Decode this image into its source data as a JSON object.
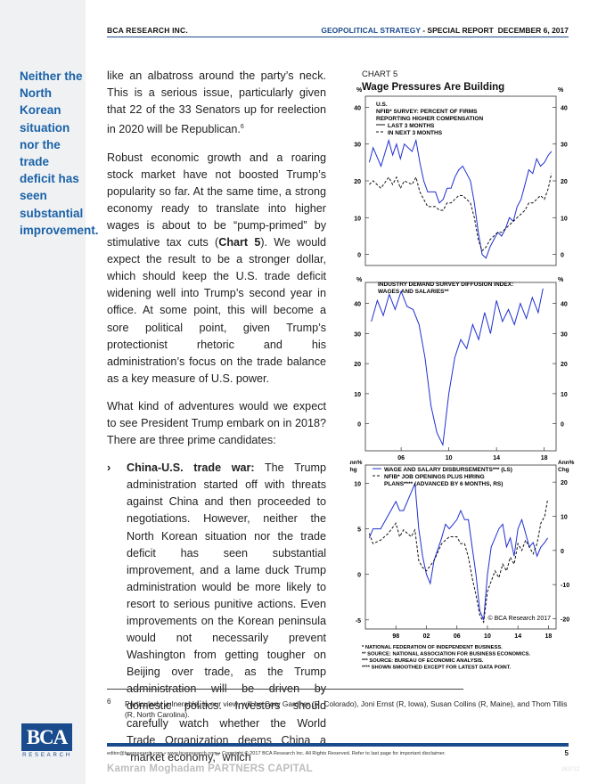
{
  "header": {
    "company": "BCA RESEARCH INC.",
    "report_type": "GEOPOLITICAL STRATEGY",
    "report_subtype": " - SPECIAL REPORT",
    "date": "DECEMBER 6, 2017"
  },
  "pull_quote": "Neither the North Korean situation nor the trade deficit has seen substantial improvement.",
  "body": {
    "p1": "like an albatross around the party’s neck. This is a serious issue, particularly given that 22 of the 33 Senators up for reelection in 2020 will be Republican.",
    "p1_ref": "6",
    "p2a": "Robust economic growth and a roaring stock market have not boosted Trump’s popularity so far. At the same time, a strong economy ready to translate into higher wages is about to be “pump-primed” by stimulative tax cuts (",
    "p2_chart": "Chart 5",
    "p2b": "). We would expect the result to be a stronger dollar, which should keep the U.S. trade deficit widening well into Trump’s second year in office. At some point, this will become a sore political point, given Trump’s protectionist rhetoric and his administration’s focus on the trade balance as a key measure of U.S. power.",
    "p3": "What kind of adventures would we expect to see President Trump embark on in 2018? There are three prime candidates:",
    "bullet_marker": "›",
    "bullet_title": "China-U.S. trade war:",
    "bullet_text": " The Trump administration started off with threats against China and then proceeded to negotiations. However, neither the North Korean situation nor the trade deficit has seen substantial improvement, and a lame duck Trump administration would be more likely to resort to serious punitive actions. Even improvements on the Korean peninsula would not necessarily prevent Washington from getting tougher on Beijing over trade, as the Trump administration will be driven by domestic politics. Investors should carefully watch whether the World Trade Organization deems China a “market economy,” which"
  },
  "chart_data": [
    {
      "type": "line",
      "chart_label": "CHART 5",
      "title": "Wage Pressures Are Building",
      "panel_title": "U.S. NFIB* SURVEY: PERCENT OF FIRMS REPORTING HIGHER COMPENSATION",
      "yunit": "%",
      "ylim": [
        -3,
        43
      ],
      "yticks": [
        0,
        10,
        20,
        30,
        40
      ],
      "xlim": [
        1994,
        2018.5
      ],
      "series": [
        {
          "name": "LAST 3 MONTHS",
          "style": "solid",
          "color": "#1f2fd1",
          "points": [
            [
              1994.5,
              25
            ],
            [
              1995,
              29
            ],
            [
              1996,
              24
            ],
            [
              1997,
              31
            ],
            [
              1997.5,
              27
            ],
            [
              1998,
              30
            ],
            [
              1998.5,
              26
            ],
            [
              1999,
              30
            ],
            [
              2000,
              28
            ],
            [
              2000.5,
              31
            ],
            [
              2001,
              25
            ],
            [
              2001.5,
              20
            ],
            [
              2002,
              17
            ],
            [
              2003,
              17
            ],
            [
              2003.5,
              14
            ],
            [
              2004,
              15
            ],
            [
              2004.5,
              18
            ],
            [
              2005,
              18
            ],
            [
              2005.5,
              21
            ],
            [
              2006,
              23
            ],
            [
              2006.5,
              24
            ],
            [
              2007,
              22
            ],
            [
              2007.5,
              20
            ],
            [
              2008,
              14
            ],
            [
              2008.5,
              6
            ],
            [
              2009,
              0
            ],
            [
              2009.5,
              -1
            ],
            [
              2010,
              2
            ],
            [
              2010.5,
              4
            ],
            [
              2011,
              6
            ],
            [
              2011.5,
              5
            ],
            [
              2012,
              7
            ],
            [
              2012.5,
              10
            ],
            [
              2013,
              9
            ],
            [
              2013.5,
              13
            ],
            [
              2014,
              15
            ],
            [
              2014.5,
              19
            ],
            [
              2015,
              23
            ],
            [
              2015.5,
              22
            ],
            [
              2016,
              26
            ],
            [
              2016.5,
              24
            ],
            [
              2017,
              25
            ],
            [
              2017.5,
              27
            ],
            [
              2017.9,
              28
            ]
          ]
        },
        {
          "name": "IN NEXT 3 MONTHS",
          "style": "dashed",
          "color": "#111111",
          "points": [
            [
              1994.5,
              19
            ],
            [
              1995,
              20
            ],
            [
              1996,
              18
            ],
            [
              1997,
              21
            ],
            [
              1997.5,
              19
            ],
            [
              1998,
              21
            ],
            [
              1998.5,
              18
            ],
            [
              1999,
              20
            ],
            [
              2000,
              19
            ],
            [
              2000.5,
              21
            ],
            [
              2001,
              17
            ],
            [
              2001.5,
              15
            ],
            [
              2002,
              13
            ],
            [
              2003,
              13
            ],
            [
              2003.5,
              12
            ],
            [
              2004,
              12
            ],
            [
              2004.5,
              14
            ],
            [
              2005,
              14
            ],
            [
              2005.5,
              15
            ],
            [
              2006,
              16
            ],
            [
              2006.5,
              16
            ],
            [
              2007,
              15
            ],
            [
              2007.5,
              14
            ],
            [
              2008,
              10
            ],
            [
              2008.5,
              4
            ],
            [
              2009,
              1
            ],
            [
              2009.5,
              2
            ],
            [
              2010,
              4
            ],
            [
              2010.5,
              5
            ],
            [
              2011,
              6
            ],
            [
              2011.5,
              6
            ],
            [
              2012,
              7
            ],
            [
              2012.5,
              8
            ],
            [
              2013,
              9
            ],
            [
              2013.5,
              10
            ],
            [
              2014,
              11
            ],
            [
              2014.5,
              12
            ],
            [
              2015,
              14
            ],
            [
              2015.5,
              14
            ],
            [
              2016,
              15
            ],
            [
              2016.5,
              16
            ],
            [
              2017,
              15
            ],
            [
              2017.5,
              18
            ],
            [
              2017.9,
              22
            ]
          ]
        }
      ]
    },
    {
      "type": "line",
      "panel_title": "INDUSTRY DEMAND SURVEY DIFFUSION INDEX: WAGES AND SALARIES**",
      "yunit": "%",
      "ylim": [
        -9,
        47
      ],
      "yticks": [
        0,
        10,
        20,
        30,
        40
      ],
      "xlim": [
        2003,
        2019
      ],
      "xticks": [
        "06",
        "10",
        "14",
        "18"
      ],
      "series": [
        {
          "name": "",
          "style": "solid",
          "color": "#1f2fd1",
          "points": [
            [
              2003.5,
              34
            ],
            [
              2004,
              41
            ],
            [
              2004.5,
              36
            ],
            [
              2005,
              43
            ],
            [
              2005.5,
              38
            ],
            [
              2006,
              44
            ],
            [
              2006.5,
              39
            ],
            [
              2007,
              38
            ],
            [
              2007.5,
              33
            ],
            [
              2008,
              22
            ],
            [
              2008.5,
              6
            ],
            [
              2009,
              -3
            ],
            [
              2009.5,
              -7
            ],
            [
              2010,
              10
            ],
            [
              2010.5,
              22
            ],
            [
              2011,
              28
            ],
            [
              2011.5,
              25
            ],
            [
              2012,
              33
            ],
            [
              2012.5,
              28
            ],
            [
              2013,
              37
            ],
            [
              2013.5,
              30
            ],
            [
              2014,
              41
            ],
            [
              2014.5,
              34
            ],
            [
              2015,
              38
            ],
            [
              2015.5,
              33
            ],
            [
              2016,
              40
            ],
            [
              2016.5,
              35
            ],
            [
              2017,
              42
            ],
            [
              2017.5,
              37
            ],
            [
              2017.9,
              45
            ]
          ]
        }
      ]
    },
    {
      "type": "line",
      "ylabel_left": "Ann% Chg",
      "ylabel_right": "Ann% Chg",
      "ylim_left": [
        -6,
        12
      ],
      "yticks_left": [
        -5,
        0,
        5,
        10
      ],
      "ylim_right": [
        -23,
        25
      ],
      "yticks_right": [
        -20,
        -10,
        0,
        10,
        20
      ],
      "xlim": [
        1994,
        2019
      ],
      "xticks": [
        "98",
        "02",
        "06",
        "10",
        "14",
        "18"
      ],
      "annotation": "© BCA Research 2017",
      "series": [
        {
          "name": "WAGE AND SALARY DISBURSEMENTS*** (LS)",
          "axis": "left",
          "style": "solid",
          "color": "#1f2fd1",
          "points": [
            [
              1994.5,
              4
            ],
            [
              1995,
              5
            ],
            [
              1996,
              5
            ],
            [
              1997,
              6.5
            ],
            [
              1998,
              8
            ],
            [
              1998.5,
              7
            ],
            [
              1999,
              7
            ],
            [
              2000,
              9
            ],
            [
              2000.5,
              10
            ],
            [
              2001,
              5
            ],
            [
              2001.5,
              2
            ],
            [
              2002,
              0
            ],
            [
              2002.5,
              -1
            ],
            [
              2003,
              1.5
            ],
            [
              2004,
              4
            ],
            [
              2004.5,
              5.5
            ],
            [
              2005,
              5
            ],
            [
              2006,
              6
            ],
            [
              2006.5,
              7
            ],
            [
              2007,
              6
            ],
            [
              2007.5,
              6
            ],
            [
              2008,
              3
            ],
            [
              2008.5,
              0
            ],
            [
              2009,
              -4
            ],
            [
              2009.5,
              -5
            ],
            [
              2010,
              0
            ],
            [
              2010.5,
              3
            ],
            [
              2011,
              4
            ],
            [
              2011.5,
              5
            ],
            [
              2012,
              5.5
            ],
            [
              2012.5,
              3
            ],
            [
              2013,
              4
            ],
            [
              2013.5,
              2
            ],
            [
              2014,
              5
            ],
            [
              2014.5,
              6
            ],
            [
              2015,
              4.5
            ],
            [
              2015.5,
              3
            ],
            [
              2016,
              3.5
            ],
            [
              2016.5,
              2
            ],
            [
              2017,
              3
            ],
            [
              2017.5,
              3.5
            ],
            [
              2017.9,
              4
            ]
          ]
        },
        {
          "name": "NFIB* JOB OPENINGS PLUS HIRING PLANS**** (ADVANCED BY 6 MONTHS, RS)",
          "axis": "right",
          "style": "dashed",
          "color": "#111111",
          "points": [
            [
              1994.5,
              5
            ],
            [
              1995,
              2
            ],
            [
              1996,
              3
            ],
            [
              1997,
              5
            ],
            [
              1998,
              8
            ],
            [
              1998.5,
              4
            ],
            [
              1999,
              6
            ],
            [
              2000,
              4
            ],
            [
              2000.5,
              6
            ],
            [
              2001,
              -3
            ],
            [
              2001.5,
              -5
            ],
            [
              2002,
              -6
            ],
            [
              2003,
              -3
            ],
            [
              2004,
              2
            ],
            [
              2004.5,
              3
            ],
            [
              2005,
              4
            ],
            [
              2006,
              4
            ],
            [
              2006.5,
              2
            ],
            [
              2007,
              2
            ],
            [
              2007.5,
              -2
            ],
            [
              2008,
              -8
            ],
            [
              2008.5,
              -13
            ],
            [
              2009,
              -19
            ],
            [
              2009.5,
              -21
            ],
            [
              2010,
              -12
            ],
            [
              2010.5,
              -9
            ],
            [
              2011,
              -6
            ],
            [
              2011.5,
              -8
            ],
            [
              2012,
              -4
            ],
            [
              2012.5,
              -6
            ],
            [
              2013,
              -2
            ],
            [
              2013.5,
              -4
            ],
            [
              2014,
              2
            ],
            [
              2014.5,
              0
            ],
            [
              2015,
              3
            ],
            [
              2015.5,
              1
            ],
            [
              2016,
              -1
            ],
            [
              2016.5,
              2
            ],
            [
              2017,
              8
            ],
            [
              2017.5,
              10
            ],
            [
              2017.9,
              15
            ]
          ]
        }
      ]
    }
  ],
  "chart_footnotes": [
    "*   NATIONAL FEDERATION OF INDEPENDENT BUSINESS.",
    "**   SOURCE: NATIONAL ASSOCIATION FOR BUSINESS ECONOMICS.",
    "***  SOURCE: BUREAU OF ECONOMIC ANALYSIS.",
    "**** SHOWN SMOOTHED EXCEPT FOR LATEST DATA POINT."
  ],
  "footnote": {
    "number": "6",
    "text": "Particularly vulnerable, in our view, will be Cory Gardner (R, Colorado), Joni Ernst (R, Iowa), Susan Collins (R, Maine), and Thom Tillis (R, North Carolina)."
  },
  "footer": {
    "contact": "editor@bcaresearch.com  •  www.bcaresearch.com  •  Copyright © 2017 BCA Research Inc. All Rights Reserved. Refer to last page for important disclaimer.",
    "page": "5",
    "watermark": "Kamran Moghadam PARTNERS CAPITAL",
    "code": "263712"
  },
  "logo": {
    "text": "BCA",
    "sub": "RESEARCH"
  },
  "colors": {
    "brand": "#1a4b8c",
    "pull": "#1a62a8",
    "series_blue": "#1f2fd1"
  }
}
